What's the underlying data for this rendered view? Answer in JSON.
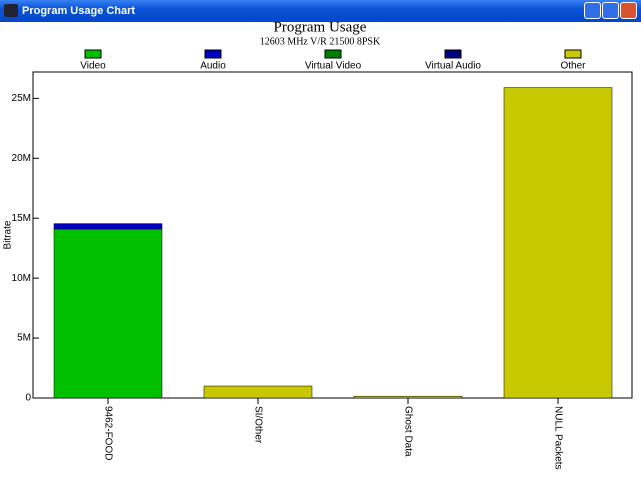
{
  "window": {
    "title": "Program Usage Chart"
  },
  "chart_data": {
    "type": "stacked-bar",
    "title": "Program Usage",
    "subtitle": "12603 MHz V/R 21500 8PSK",
    "y_label": "Bitrate",
    "categories": [
      "9462-FOOD",
      "SI/Other",
      "Ghost Data",
      "NULL Packets"
    ],
    "series": [
      {
        "name": "Video",
        "color": "#00c000",
        "values": [
          14100000,
          0,
          0,
          0
        ]
      },
      {
        "name": "Audio",
        "color": "#0000c0",
        "values": [
          450000,
          0,
          0,
          0
        ]
      },
      {
        "name": "Virtual Video",
        "color": "#008000",
        "values": [
          0,
          0,
          0,
          0
        ]
      },
      {
        "name": "Virtual Audio",
        "color": "#000080",
        "values": [
          0,
          0,
          0,
          0
        ]
      },
      {
        "name": "Other",
        "color": "#c8c800",
        "values": [
          0,
          1000000,
          150000,
          25900000
        ]
      }
    ],
    "ylim": [
      0,
      27200000
    ],
    "yticks": [
      0,
      {
        "value": 5000000,
        "label": "5M"
      },
      {
        "value": 10000000,
        "label": "10M"
      },
      {
        "value": 15000000,
        "label": "15M"
      },
      {
        "value": 20000000,
        "label": "20M"
      },
      {
        "value": 25000000,
        "label": "25M"
      }
    ]
  }
}
